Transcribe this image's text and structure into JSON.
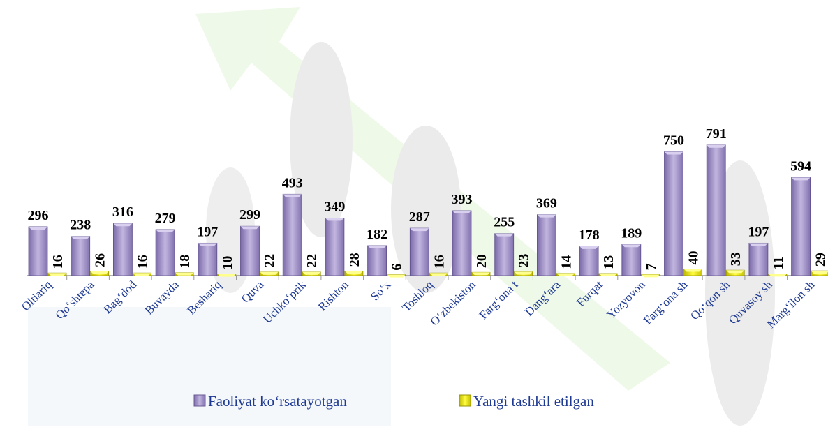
{
  "chart_data": {
    "type": "bar",
    "categories": [
      "Oltiariq",
      "Qo‘shtepa",
      "Bag‘dod",
      "Buvayda",
      "Beshariq",
      "Quva",
      "Uchko‘prik",
      "Rishton",
      "So‘x",
      "Toshloq",
      "O‘zbekiston",
      "Farg‘ona t",
      "Dang‘ara",
      "Furqat",
      "Yozyovon",
      "Farg‘ona sh",
      "Qo‘qon sh",
      "Quvasoy sh",
      "Marg‘ilon sh"
    ],
    "series": [
      {
        "name": "Faoliyat ko‘rsatayotgan",
        "color": "#9d8ec2",
        "values": [
          296,
          238,
          316,
          279,
          197,
          299,
          493,
          349,
          182,
          287,
          393,
          255,
          369,
          178,
          189,
          750,
          791,
          197,
          594
        ]
      },
      {
        "name": "Yangi tashkil etilgan",
        "color": "#e6e200",
        "values": [
          16,
          26,
          16,
          18,
          10,
          22,
          22,
          28,
          6,
          16,
          20,
          23,
          14,
          13,
          7,
          40,
          33,
          11,
          29
        ]
      }
    ],
    "ylim": [
      0,
      900
    ]
  }
}
